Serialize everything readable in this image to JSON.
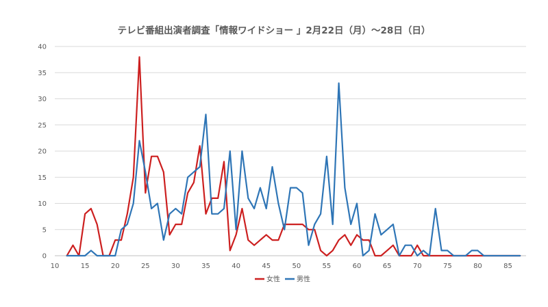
{
  "chart_data": {
    "type": "line",
    "title": "テレビ番組出演者調査「情報ワイドショー 」2月22日（月）〜28日（日）",
    "xlabel": "",
    "ylabel": "",
    "xlim": [
      10,
      88
    ],
    "ylim": [
      0,
      40
    ],
    "x_ticks": [
      "10",
      "15",
      "20",
      "25",
      "30",
      "35",
      "40",
      "45",
      "50",
      "55",
      "60",
      "65",
      "70",
      "75",
      "80",
      "85"
    ],
    "y_ticks": [
      "0",
      "5",
      "10",
      "15",
      "20",
      "25",
      "30",
      "35",
      "40"
    ],
    "grid": "horizontal",
    "legend_position": "bottom",
    "series": [
      {
        "name": "女性",
        "color": "#cc1f1f",
        "points": [
          [
            12,
            0
          ],
          [
            13,
            2
          ],
          [
            14,
            0
          ],
          [
            15,
            8
          ],
          [
            16,
            9
          ],
          [
            17,
            6
          ],
          [
            18,
            0
          ],
          [
            19,
            0
          ],
          [
            20,
            3
          ],
          [
            21,
            3
          ],
          [
            22,
            8
          ],
          [
            23,
            15
          ],
          [
            24,
            38
          ],
          [
            25,
            12
          ],
          [
            26,
            19
          ],
          [
            27,
            19
          ],
          [
            28,
            16
          ],
          [
            29,
            4
          ],
          [
            30,
            6
          ],
          [
            31,
            6
          ],
          [
            32,
            12
          ],
          [
            33,
            14
          ],
          [
            34,
            21
          ],
          [
            35,
            8
          ],
          [
            36,
            11
          ],
          [
            37,
            11
          ],
          [
            38,
            18
          ],
          [
            39,
            1
          ],
          [
            40,
            4
          ],
          [
            41,
            9
          ],
          [
            42,
            3
          ],
          [
            43,
            2
          ],
          [
            44,
            3
          ],
          [
            45,
            4
          ],
          [
            46,
            3
          ],
          [
            47,
            3
          ],
          [
            48,
            6
          ],
          [
            49,
            6
          ],
          [
            50,
            6
          ],
          [
            51,
            6
          ],
          [
            52,
            5
          ],
          [
            53,
            5
          ],
          [
            54,
            1
          ],
          [
            55,
            0
          ],
          [
            56,
            1
          ],
          [
            57,
            3
          ],
          [
            58,
            4
          ],
          [
            59,
            2
          ],
          [
            60,
            4
          ],
          [
            61,
            3
          ],
          [
            62,
            3
          ],
          [
            63,
            0
          ],
          [
            64,
            0
          ],
          [
            65,
            1
          ],
          [
            66,
            2
          ],
          [
            67,
            0
          ],
          [
            68,
            0
          ],
          [
            69,
            0
          ],
          [
            70,
            2
          ],
          [
            71,
            0
          ],
          [
            72,
            0
          ],
          [
            73,
            0
          ],
          [
            74,
            0
          ],
          [
            75,
            0
          ],
          [
            76,
            0
          ],
          [
            77,
            0
          ],
          [
            78,
            0
          ],
          [
            79,
            0
          ],
          [
            80,
            0
          ],
          [
            81,
            0
          ],
          [
            82,
            0
          ],
          [
            83,
            0
          ],
          [
            84,
            0
          ],
          [
            85,
            0
          ],
          [
            86,
            0
          ],
          [
            87,
            0
          ]
        ]
      },
      {
        "name": "男性",
        "color": "#2e75b6",
        "points": [
          [
            12,
            0
          ],
          [
            13,
            0
          ],
          [
            14,
            0
          ],
          [
            15,
            0
          ],
          [
            16,
            1
          ],
          [
            17,
            0
          ],
          [
            18,
            0
          ],
          [
            19,
            0
          ],
          [
            20,
            0
          ],
          [
            21,
            5
          ],
          [
            22,
            6
          ],
          [
            23,
            10
          ],
          [
            24,
            22
          ],
          [
            25,
            16
          ],
          [
            26,
            9
          ],
          [
            27,
            10
          ],
          [
            28,
            3
          ],
          [
            29,
            8
          ],
          [
            30,
            9
          ],
          [
            31,
            8
          ],
          [
            32,
            15
          ],
          [
            33,
            16
          ],
          [
            34,
            17
          ],
          [
            35,
            27
          ],
          [
            36,
            8
          ],
          [
            37,
            8
          ],
          [
            38,
            9
          ],
          [
            39,
            20
          ],
          [
            40,
            5
          ],
          [
            41,
            20
          ],
          [
            42,
            11
          ],
          [
            43,
            9
          ],
          [
            44,
            13
          ],
          [
            45,
            9
          ],
          [
            46,
            17
          ],
          [
            47,
            10
          ],
          [
            48,
            5
          ],
          [
            49,
            13
          ],
          [
            50,
            13
          ],
          [
            51,
            12
          ],
          [
            52,
            2
          ],
          [
            53,
            6
          ],
          [
            54,
            8
          ],
          [
            55,
            19
          ],
          [
            56,
            6
          ],
          [
            57,
            33
          ],
          [
            58,
            13
          ],
          [
            59,
            6
          ],
          [
            60,
            10
          ],
          [
            61,
            0
          ],
          [
            62,
            1
          ],
          [
            63,
            8
          ],
          [
            64,
            4
          ],
          [
            65,
            5
          ],
          [
            66,
            6
          ],
          [
            67,
            0
          ],
          [
            68,
            2
          ],
          [
            69,
            2
          ],
          [
            70,
            0
          ],
          [
            71,
            1
          ],
          [
            72,
            0
          ],
          [
            73,
            9
          ],
          [
            74,
            1
          ],
          [
            75,
            1
          ],
          [
            76,
            0
          ],
          [
            77,
            0
          ],
          [
            78,
            0
          ],
          [
            79,
            1
          ],
          [
            80,
            1
          ],
          [
            81,
            0
          ],
          [
            82,
            0
          ],
          [
            83,
            0
          ],
          [
            84,
            0
          ],
          [
            85,
            0
          ],
          [
            86,
            0
          ],
          [
            87,
            0
          ]
        ]
      }
    ]
  }
}
